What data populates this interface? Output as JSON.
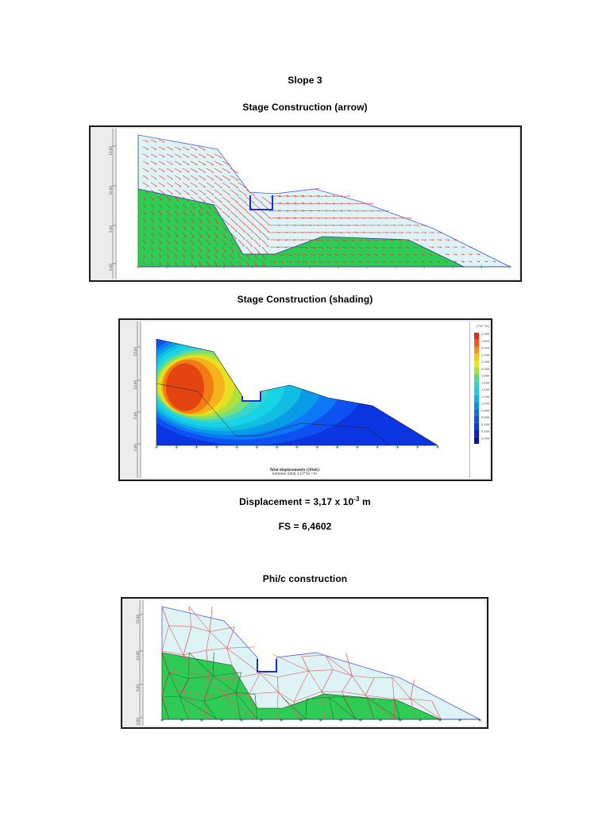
{
  "title": "Slope 3",
  "sections": {
    "arrow_caption": "Stage Construction (arrow)",
    "shading_caption": "Stage Construction (shading)",
    "phic_caption": "Phi/c construction"
  },
  "results": {
    "displacement_prefix": "Displacement = 3,17 x 10",
    "displacement_exponent": "-3",
    "displacement_unit": " m",
    "fs": "FS = 6,4602"
  },
  "axis_ticks": [
    "15.00",
    "10.00",
    "5.00",
    "0.00"
  ],
  "shading_plot": {
    "legend_title": "[*10⁻³m]",
    "legend_values": [
      "3.000",
      "2.800",
      "2.600",
      "2.400",
      "2.200",
      "2.000",
      "1.800",
      "1.600",
      "1.400",
      "1.200",
      "1.000",
      "0.800",
      "0.600",
      "0.400",
      "0.200",
      "0.000"
    ],
    "caption_line1": "Total displacements (|Utot|)",
    "caption_line2": "Extreme |Utot| 3.17*10⁻³ m"
  },
  "colors": {
    "soil_green": "#2ecc55",
    "upper_fill": "#def3f6",
    "arrow_red": "#e8302a",
    "mesh_red": "#e06060",
    "outline_blue": "#1a2fd6"
  }
}
